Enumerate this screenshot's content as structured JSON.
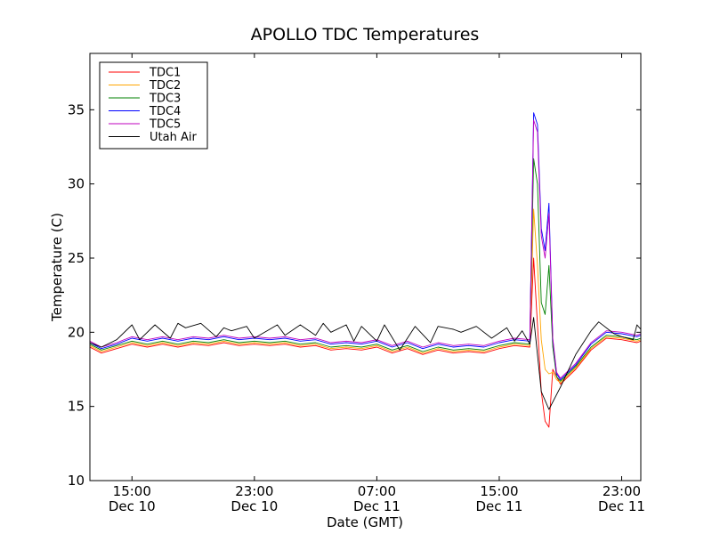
{
  "chart_data": {
    "type": "line",
    "title": "APOLLO TDC Temperatures",
    "xlabel": "Date (GMT)",
    "ylabel": "Temperature (C)",
    "xlim": [
      "2010-12-10 12:15",
      "2010-12-12 00:15"
    ],
    "ylim": [
      10,
      38.8
    ],
    "yticks": [
      10,
      15,
      20,
      25,
      30,
      35
    ],
    "xticks": [
      {
        "at": "2010-12-10 15:00",
        "time": "15:00",
        "date": "Dec 10"
      },
      {
        "at": "2010-12-10 23:00",
        "time": "23:00",
        "date": "Dec 10"
      },
      {
        "at": "2010-12-11 07:00",
        "time": "07:00",
        "date": "Dec 11"
      },
      {
        "at": "2010-12-11 15:00",
        "time": "15:00",
        "date": "Dec 11"
      },
      {
        "at": "2010-12-11 23:00",
        "time": "23:00",
        "date": "Dec 11"
      }
    ],
    "grid": false,
    "legend_position": "top-left",
    "series": [
      {
        "name": "TDC1",
        "color": "#ff0000",
        "x": [
          "2010-12-10 12:15",
          "2010-12-10 13:00",
          "2010-12-10 14:00",
          "2010-12-10 15:00",
          "2010-12-10 16:00",
          "2010-12-10 17:00",
          "2010-12-10 18:00",
          "2010-12-10 19:00",
          "2010-12-10 20:00",
          "2010-12-10 21:00",
          "2010-12-10 22:00",
          "2010-12-10 23:00",
          "2010-12-11 00:00",
          "2010-12-11 01:00",
          "2010-12-11 02:00",
          "2010-12-11 03:00",
          "2010-12-11 04:00",
          "2010-12-11 05:00",
          "2010-12-11 06:00",
          "2010-12-11 07:00",
          "2010-12-11 08:00",
          "2010-12-11 09:00",
          "2010-12-11 10:00",
          "2010-12-11 11:00",
          "2010-12-11 12:00",
          "2010-12-11 13:00",
          "2010-12-11 14:00",
          "2010-12-11 15:00",
          "2010-12-11 16:00",
          "2010-12-11 17:00",
          "2010-12-11 17:15",
          "2010-12-11 17:30",
          "2010-12-11 17:45",
          "2010-12-11 18:00",
          "2010-12-11 18:15",
          "2010-12-11 18:30",
          "2010-12-11 18:45",
          "2010-12-11 19:00",
          "2010-12-11 20:00",
          "2010-12-11 21:00",
          "2010-12-11 22:00",
          "2010-12-11 23:00",
          "2010-12-12 00:00",
          "2010-12-12 00:15"
        ],
        "y": [
          19.0,
          18.6,
          18.9,
          19.2,
          19.0,
          19.2,
          19.0,
          19.2,
          19.1,
          19.3,
          19.1,
          19.2,
          19.1,
          19.2,
          19.0,
          19.1,
          18.8,
          18.9,
          18.8,
          19.0,
          18.6,
          18.9,
          18.5,
          18.8,
          18.6,
          18.7,
          18.6,
          18.9,
          19.1,
          19.0,
          25.0,
          20.5,
          16.0,
          14.0,
          13.6,
          17.5,
          17.0,
          16.5,
          17.5,
          18.8,
          19.6,
          19.5,
          19.3,
          19.4
        ]
      },
      {
        "name": "TDC2",
        "color": "#ffa500",
        "x": [
          "2010-12-10 12:15",
          "2010-12-10 13:00",
          "2010-12-10 14:00",
          "2010-12-10 15:00",
          "2010-12-10 16:00",
          "2010-12-10 17:00",
          "2010-12-10 18:00",
          "2010-12-10 19:00",
          "2010-12-10 20:00",
          "2010-12-10 21:00",
          "2010-12-10 22:00",
          "2010-12-10 23:00",
          "2010-12-11 00:00",
          "2010-12-11 01:00",
          "2010-12-11 02:00",
          "2010-12-11 03:00",
          "2010-12-11 04:00",
          "2010-12-11 05:00",
          "2010-12-11 06:00",
          "2010-12-11 07:00",
          "2010-12-11 08:00",
          "2010-12-11 09:00",
          "2010-12-11 10:00",
          "2010-12-11 11:00",
          "2010-12-11 12:00",
          "2010-12-11 13:00",
          "2010-12-11 14:00",
          "2010-12-11 15:00",
          "2010-12-11 16:00",
          "2010-12-11 17:00",
          "2010-12-11 17:15",
          "2010-12-11 17:30",
          "2010-12-11 17:45",
          "2010-12-11 18:00",
          "2010-12-11 18:15",
          "2010-12-11 18:30",
          "2010-12-11 18:45",
          "2010-12-11 19:00",
          "2010-12-11 20:00",
          "2010-12-11 21:00",
          "2010-12-11 22:00",
          "2010-12-11 23:00",
          "2010-12-12 00:00",
          "2010-12-12 00:15"
        ],
        "y": [
          19.1,
          18.7,
          19.0,
          19.3,
          19.1,
          19.3,
          19.1,
          19.3,
          19.2,
          19.4,
          19.2,
          19.3,
          19.2,
          19.3,
          19.1,
          19.2,
          18.9,
          19.0,
          18.9,
          19.1,
          18.7,
          19.0,
          18.6,
          18.9,
          18.7,
          18.8,
          18.7,
          19.0,
          19.2,
          19.1,
          28.3,
          24.5,
          19.5,
          17.5,
          17.2,
          17.3,
          16.8,
          16.6,
          17.6,
          18.9,
          19.7,
          19.6,
          19.4,
          19.5
        ]
      },
      {
        "name": "TDC3",
        "color": "#008000",
        "x": [
          "2010-12-10 12:15",
          "2010-12-10 13:00",
          "2010-12-10 14:00",
          "2010-12-10 15:00",
          "2010-12-10 16:00",
          "2010-12-10 17:00",
          "2010-12-10 18:00",
          "2010-12-10 19:00",
          "2010-12-10 20:00",
          "2010-12-10 21:00",
          "2010-12-10 22:00",
          "2010-12-10 23:00",
          "2010-12-11 00:00",
          "2010-12-11 01:00",
          "2010-12-11 02:00",
          "2010-12-11 03:00",
          "2010-12-11 04:00",
          "2010-12-11 05:00",
          "2010-12-11 06:00",
          "2010-12-11 07:00",
          "2010-12-11 08:00",
          "2010-12-11 09:00",
          "2010-12-11 10:00",
          "2010-12-11 11:00",
          "2010-12-11 12:00",
          "2010-12-11 13:00",
          "2010-12-11 14:00",
          "2010-12-11 15:00",
          "2010-12-11 16:00",
          "2010-12-11 17:00",
          "2010-12-11 17:15",
          "2010-12-11 17:30",
          "2010-12-11 17:45",
          "2010-12-11 18:00",
          "2010-12-11 18:15",
          "2010-12-11 18:30",
          "2010-12-11 18:45",
          "2010-12-11 19:00",
          "2010-12-11 20:00",
          "2010-12-11 21:00",
          "2010-12-11 22:00",
          "2010-12-11 23:00",
          "2010-12-12 00:00",
          "2010-12-12 00:15"
        ],
        "y": [
          19.2,
          18.8,
          19.1,
          19.4,
          19.2,
          19.4,
          19.2,
          19.4,
          19.3,
          19.5,
          19.3,
          19.4,
          19.3,
          19.4,
          19.2,
          19.3,
          19.0,
          19.1,
          19.0,
          19.2,
          18.8,
          19.1,
          18.7,
          19.0,
          18.8,
          18.9,
          18.8,
          19.1,
          19.3,
          19.2,
          31.7,
          30.0,
          22.0,
          21.2,
          24.5,
          19.0,
          17.0,
          16.7,
          17.7,
          19.0,
          19.8,
          19.7,
          19.5,
          19.6
        ]
      },
      {
        "name": "TDC4",
        "color": "#0000ff",
        "x": [
          "2010-12-10 12:15",
          "2010-12-10 13:00",
          "2010-12-10 14:00",
          "2010-12-10 15:00",
          "2010-12-10 16:00",
          "2010-12-10 17:00",
          "2010-12-10 18:00",
          "2010-12-10 19:00",
          "2010-12-10 20:00",
          "2010-12-10 21:00",
          "2010-12-10 22:00",
          "2010-12-10 23:00",
          "2010-12-11 00:00",
          "2010-12-11 01:00",
          "2010-12-11 02:00",
          "2010-12-11 03:00",
          "2010-12-11 04:00",
          "2010-12-11 05:00",
          "2010-12-11 06:00",
          "2010-12-11 07:00",
          "2010-12-11 08:00",
          "2010-12-11 09:00",
          "2010-12-11 10:00",
          "2010-12-11 11:00",
          "2010-12-11 12:00",
          "2010-12-11 13:00",
          "2010-12-11 14:00",
          "2010-12-11 15:00",
          "2010-12-11 16:00",
          "2010-12-11 17:00",
          "2010-12-11 17:15",
          "2010-12-11 17:30",
          "2010-12-11 17:45",
          "2010-12-11 18:00",
          "2010-12-11 18:15",
          "2010-12-11 18:30",
          "2010-12-11 18:45",
          "2010-12-11 19:00",
          "2010-12-11 20:00",
          "2010-12-11 21:00",
          "2010-12-11 22:00",
          "2010-12-11 23:00",
          "2010-12-12 00:00",
          "2010-12-12 00:15"
        ],
        "y": [
          19.3,
          18.9,
          19.2,
          19.6,
          19.4,
          19.6,
          19.4,
          19.6,
          19.5,
          19.7,
          19.5,
          19.6,
          19.5,
          19.6,
          19.4,
          19.5,
          19.2,
          19.3,
          19.2,
          19.4,
          19.0,
          19.3,
          18.9,
          19.2,
          19.0,
          19.1,
          19.0,
          19.3,
          19.5,
          19.4,
          34.8,
          34.0,
          27.0,
          25.5,
          28.7,
          19.5,
          17.2,
          16.8,
          17.8,
          19.2,
          20.0,
          19.9,
          19.7,
          19.8
        ]
      },
      {
        "name": "TDC5",
        "color": "#bf00bf",
        "x": [
          "2010-12-10 12:15",
          "2010-12-10 13:00",
          "2010-12-10 14:00",
          "2010-12-10 15:00",
          "2010-12-10 16:00",
          "2010-12-10 17:00",
          "2010-12-10 18:00",
          "2010-12-10 19:00",
          "2010-12-10 20:00",
          "2010-12-10 21:00",
          "2010-12-10 22:00",
          "2010-12-10 23:00",
          "2010-12-11 00:00",
          "2010-12-11 01:00",
          "2010-12-11 02:00",
          "2010-12-11 03:00",
          "2010-12-11 04:00",
          "2010-12-11 05:00",
          "2010-12-11 06:00",
          "2010-12-11 07:00",
          "2010-12-11 08:00",
          "2010-12-11 09:00",
          "2010-12-11 10:00",
          "2010-12-11 11:00",
          "2010-12-11 12:00",
          "2010-12-11 13:00",
          "2010-12-11 14:00",
          "2010-12-11 15:00",
          "2010-12-11 16:00",
          "2010-12-11 17:00",
          "2010-12-11 17:15",
          "2010-12-11 17:30",
          "2010-12-11 17:45",
          "2010-12-11 18:00",
          "2010-12-11 18:15",
          "2010-12-11 18:30",
          "2010-12-11 18:45",
          "2010-12-11 19:00",
          "2010-12-11 20:00",
          "2010-12-11 21:00",
          "2010-12-11 22:00",
          "2010-12-11 23:00",
          "2010-12-12 00:00",
          "2010-12-12 00:15"
        ],
        "y": [
          19.4,
          19.0,
          19.3,
          19.7,
          19.5,
          19.7,
          19.5,
          19.7,
          19.6,
          19.8,
          19.6,
          19.7,
          19.6,
          19.7,
          19.5,
          19.6,
          19.3,
          19.4,
          19.3,
          19.5,
          19.1,
          19.4,
          19.0,
          19.3,
          19.1,
          19.2,
          19.1,
          19.4,
          19.6,
          19.5,
          34.3,
          33.5,
          26.5,
          25.0,
          28.0,
          19.6,
          17.3,
          16.9,
          17.9,
          19.3,
          20.1,
          20.0,
          19.8,
          19.9
        ]
      },
      {
        "name": "Utah Air",
        "color": "#000000",
        "x": [
          "2010-12-10 12:15",
          "2010-12-10 13:00",
          "2010-12-10 14:00",
          "2010-12-10 15:00",
          "2010-12-10 15:30",
          "2010-12-10 16:30",
          "2010-12-10 17:30",
          "2010-12-10 18:00",
          "2010-12-10 18:30",
          "2010-12-10 19:30",
          "2010-12-10 20:30",
          "2010-12-10 21:00",
          "2010-12-10 21:30",
          "2010-12-10 22:30",
          "2010-12-10 23:00",
          "2010-12-11 00:30",
          "2010-12-11 01:00",
          "2010-12-11 02:00",
          "2010-12-11 03:00",
          "2010-12-11 03:30",
          "2010-12-11 04:00",
          "2010-12-11 05:00",
          "2010-12-11 05:30",
          "2010-12-11 06:00",
          "2010-12-11 07:00",
          "2010-12-11 07:30",
          "2010-12-11 08:30",
          "2010-12-11 09:30",
          "2010-12-11 10:30",
          "2010-12-11 11:00",
          "2010-12-11 12:00",
          "2010-12-11 12:30",
          "2010-12-11 13:30",
          "2010-12-11 14:30",
          "2010-12-11 15:30",
          "2010-12-11 16:00",
          "2010-12-11 16:30",
          "2010-12-11 17:00",
          "2010-12-11 17:15",
          "2010-12-11 17:45",
          "2010-12-11 18:15",
          "2010-12-11 18:45",
          "2010-12-11 19:00",
          "2010-12-11 20:00",
          "2010-12-11 21:00",
          "2010-12-11 21:30",
          "2010-12-11 22:30",
          "2010-12-11 23:00",
          "2010-12-11 23:45",
          "2010-12-12 00:00",
          "2010-12-12 00:15"
        ],
        "y": [
          19.3,
          19.0,
          19.5,
          20.5,
          19.5,
          20.5,
          19.6,
          20.6,
          20.3,
          20.6,
          19.7,
          20.3,
          20.1,
          20.4,
          19.6,
          20.5,
          19.8,
          20.5,
          19.8,
          20.6,
          20.0,
          20.5,
          19.4,
          20.4,
          19.4,
          20.5,
          18.8,
          20.4,
          19.3,
          20.4,
          20.2,
          20.0,
          20.4,
          19.6,
          20.3,
          19.4,
          20.1,
          19.2,
          21.0,
          16.0,
          14.8,
          15.8,
          16.3,
          18.5,
          20.1,
          20.7,
          19.9,
          19.7,
          19.5,
          20.5,
          20.2
        ]
      }
    ]
  }
}
